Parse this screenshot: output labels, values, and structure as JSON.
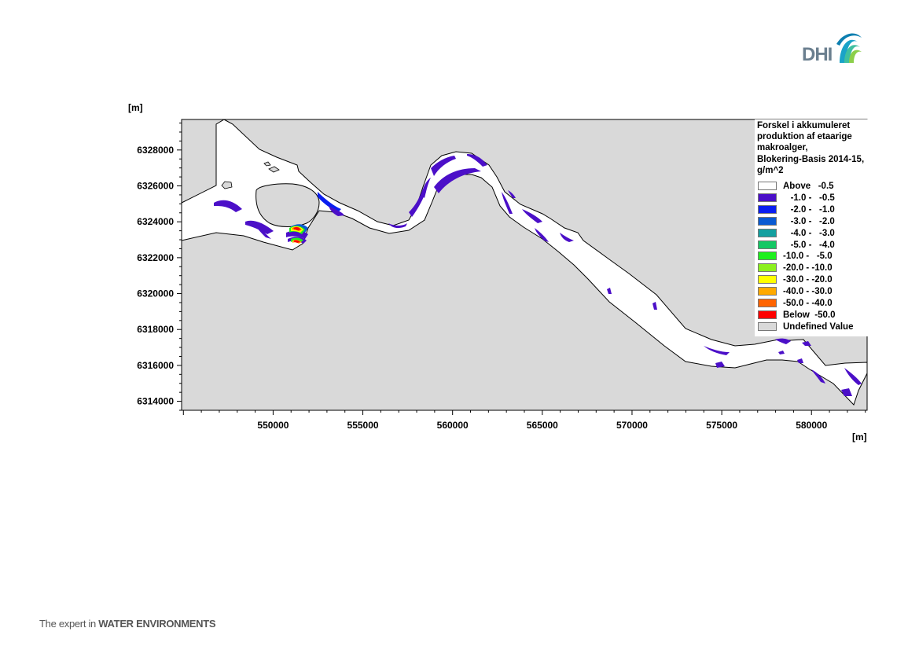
{
  "brand": {
    "logo_text": "DHI",
    "tagline_prefix": "The expert in ",
    "tagline_strong": "WATER ENVIRONMENTS"
  },
  "axes": {
    "y_unit": "[m]",
    "x_unit": "[m]",
    "y_ticks": [
      "6328000",
      "6326000",
      "6324000",
      "6322000",
      "6320000",
      "6318000",
      "6316000",
      "6314000"
    ],
    "x_ticks": [
      "550000",
      "555000",
      "560000",
      "565000",
      "570000",
      "575000",
      "580000"
    ],
    "x_range": [
      544900,
      583100
    ],
    "y_range": [
      6313500,
      6329700
    ]
  },
  "legend": {
    "title": "Forskel i akkumuleret\nproduktion af etaarige\nmakroalger,\nBlokering-Basis 2014-15,\ng/m^2",
    "items": [
      {
        "label": "Above   -0.5",
        "color": "#ffffff"
      },
      {
        "label": "   -1.0 -   -0.5",
        "color": "#4b0fc8"
      },
      {
        "label": "   -2.0 -   -1.0",
        "color": "#0a1ef0"
      },
      {
        "label": "   -3.0 -   -2.0",
        "color": "#0a5ad2"
      },
      {
        "label": "   -4.0 -   -3.0",
        "color": "#14a0a0"
      },
      {
        "label": "   -5.0 -   -4.0",
        "color": "#14c864"
      },
      {
        "label": "-10.0 -   -5.0",
        "color": "#1ef01e"
      },
      {
        "label": "-20.0 - -10.0",
        "color": "#8cf01e"
      },
      {
        "label": "-30.0 - -20.0",
        "color": "#ffff00"
      },
      {
        "label": "-40.0 - -30.0",
        "color": "#ffaa00"
      },
      {
        "label": "-50.0 - -40.0",
        "color": "#ff6400"
      },
      {
        "label": "Below  -50.0",
        "color": "#ff0000"
      },
      {
        "label": "Undefined Value",
        "color": "#d9d9d9"
      }
    ]
  },
  "colors": {
    "land": "#d9d9d9",
    "water": "#ffffff",
    "coastline": "#000000",
    "primary_patch": "#4b0fc8"
  }
}
